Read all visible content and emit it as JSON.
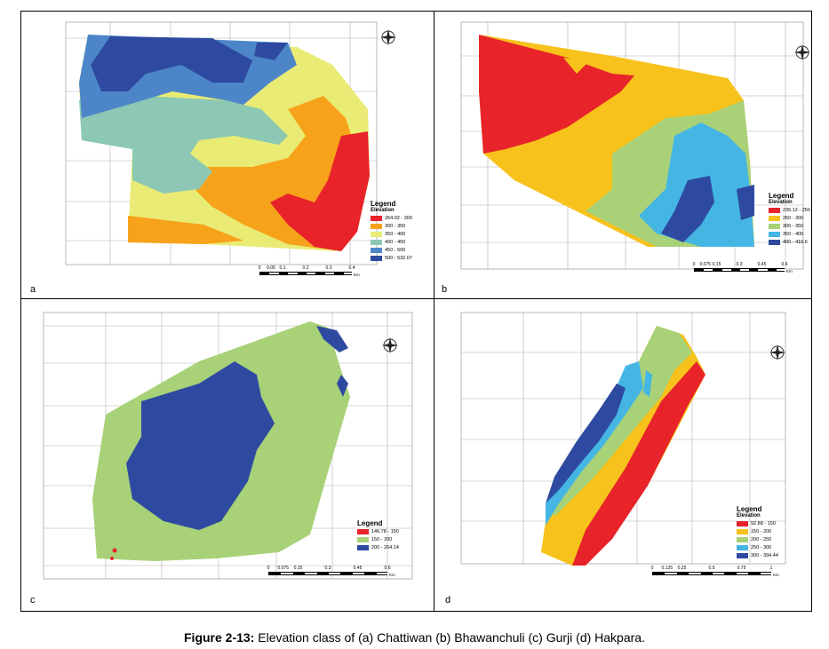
{
  "caption": {
    "label": "Figure 2-13:",
    "text": " Elevation class of (a) Chattiwan (b) Bhawanchuli (c) Gurji (d) Hakpara."
  },
  "colors": {
    "red": "#e8232a",
    "orange": "#f7a21b",
    "yellow": "#f2e14a",
    "light_yellow": "#e9eb74",
    "light_green": "#a8d178",
    "teal": "#8cc8b4",
    "cyan": "#45b6e4",
    "blue_mid": "#4d86c8",
    "dark_blue": "#2e4aa0"
  },
  "panels": [
    {
      "letter": "a",
      "legend_title": "Legend",
      "legend_subtitle": "Elevation",
      "legend_items": [
        {
          "label": "264.02 - 300",
          "color": "#e8232a"
        },
        {
          "label": "300 - 350",
          "color": "#f7a21b"
        },
        {
          "label": "350 - 400",
          "color": "#e9eb74"
        },
        {
          "label": "400 - 450",
          "color": "#8cc8b4"
        },
        {
          "label": "450 - 500",
          "color": "#4d86c8"
        },
        {
          "label": "500 - 532.07",
          "color": "#2e4aa0"
        }
      ],
      "scale_labels": [
        "0",
        "0.05",
        "0.1",
        "0.2",
        "0.3",
        "0.4"
      ],
      "scale_unit": "Km"
    },
    {
      "letter": "b",
      "legend_title": "Legend",
      "legend_subtitle": "Elevation",
      "legend_items": [
        {
          "label": "236.12 - 250",
          "color": "#e8232a"
        },
        {
          "label": "250 - 300",
          "color": "#f7c21b"
        },
        {
          "label": "300 - 350",
          "color": "#a8d178"
        },
        {
          "label": "350 - 400",
          "color": "#45b6e4"
        },
        {
          "label": "400 - 416.6",
          "color": "#2e4aa0"
        }
      ],
      "scale_labels": [
        "0",
        "0.075",
        "0.15",
        "0.3",
        "0.45",
        "0.6"
      ],
      "scale_unit": "Km"
    },
    {
      "letter": "c",
      "legend_title": "Legend",
      "legend_subtitle": "",
      "legend_items": [
        {
          "label": "146.78 - 150",
          "color": "#e8232a"
        },
        {
          "label": "150 - 200",
          "color": "#a8d178"
        },
        {
          "label": "200 - 264.14",
          "color": "#2e4aa0"
        }
      ],
      "scale_labels": [
        "0",
        "0.075",
        "0.15",
        "0.3",
        "0.45",
        "0.6"
      ],
      "scale_unit": "Km"
    },
    {
      "letter": "d",
      "legend_title": "Legend",
      "legend_subtitle": "Elevation",
      "legend_items": [
        {
          "label": "92.88 - 150",
          "color": "#e8232a"
        },
        {
          "label": "150 - 200",
          "color": "#f7c21b"
        },
        {
          "label": "200 - 250",
          "color": "#a8d178"
        },
        {
          "label": "250 - 300",
          "color": "#45b6e4"
        },
        {
          "label": "300 - 394.44",
          "color": "#2e4aa0"
        }
      ],
      "scale_labels": [
        "0",
        "0.125",
        "0.25",
        "0.5",
        "0.75",
        "1"
      ],
      "scale_unit": "Km"
    }
  ]
}
